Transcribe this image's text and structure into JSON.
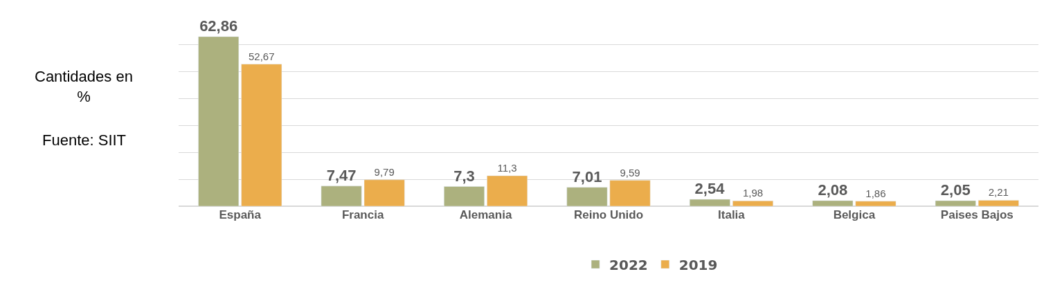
{
  "chart_data": {
    "type": "bar",
    "categories": [
      "España",
      "Francia",
      "Alemania",
      "Reino Unido",
      "Italia",
      "Belgica",
      "Paises Bajos"
    ],
    "series": [
      {
        "name": "2022",
        "color": "#acb17e",
        "values": [
          62.86,
          7.47,
          7.3,
          7.01,
          2.54,
          2.08,
          2.05
        ],
        "value_labels": [
          "62,86",
          "7,47",
          "7,3",
          "7,01",
          "2,54",
          "2,08",
          "2,05"
        ]
      },
      {
        "name": "2019",
        "color": "#ebad4c",
        "values": [
          52.67,
          9.79,
          11.3,
          9.59,
          1.98,
          1.86,
          2.21
        ],
        "value_labels": [
          "52,67",
          "9,79",
          "11,3",
          "9,59",
          "1,98",
          "1,86",
          "2,21"
        ]
      }
    ],
    "tick_labels": "x",
    "grid": "y",
    "legend": "bottom",
    "annotations": [
      "Cantidades en %",
      "Fuente: SIIT"
    ]
  }
}
